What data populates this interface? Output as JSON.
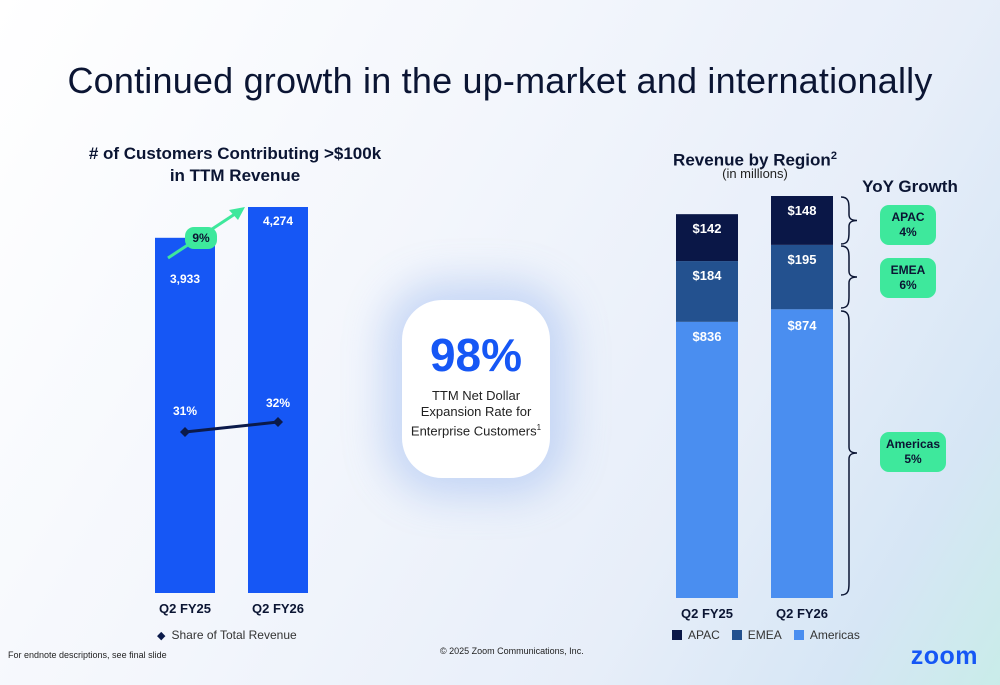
{
  "title": "Continued growth in the up-market and internationally",
  "chart_data": [
    {
      "type": "bar",
      "title_line1": "# of Customers Contributing >$100k",
      "title_line2": "in TTM Revenue",
      "categories": [
        "Q2 FY25",
        "Q2 FY26"
      ],
      "values": [
        3933,
        4274
      ],
      "value_labels": [
        "3,933",
        "4,274"
      ],
      "growth_label": "9%",
      "line_series": {
        "name": "Share of Total Revenue",
        "values": [
          31,
          32
        ],
        "labels": [
          "31%",
          "32%"
        ]
      },
      "colors": {
        "bar": "#1657f5",
        "line": "#0b1a4a",
        "growth": "#3ee89c"
      }
    },
    {
      "type": "bar",
      "stacked": true,
      "title": "Revenue by Region",
      "title_sup": "2",
      "subtitle": "(in millions)",
      "categories": [
        "Q2 FY25",
        "Q2 FY26"
      ],
      "series": [
        {
          "name": "Americas",
          "values": [
            836,
            874
          ],
          "labels": [
            "$836",
            "$874"
          ],
          "color": "#4a8ef0"
        },
        {
          "name": "EMEA",
          "values": [
            184,
            195
          ],
          "labels": [
            "$184",
            "$195"
          ],
          "color": "#23518f"
        },
        {
          "name": "APAC",
          "values": [
            142,
            148
          ],
          "labels": [
            "$142",
            "$148"
          ],
          "color": "#0a1747"
        }
      ],
      "yoy_title": "YoY Growth",
      "yoy": [
        {
          "region": "APAC",
          "value": "4%"
        },
        {
          "region": "EMEA",
          "value": "6%"
        },
        {
          "region": "Americas",
          "value": "5%"
        }
      ]
    }
  ],
  "kpi": {
    "value": "98%",
    "line1": "TTM Net Dollar",
    "line2": "Expansion Rate for",
    "line3": "Enterprise Customers",
    "sup": "1"
  },
  "footnote": "For endnote descriptions, see final slide",
  "copyright": "© 2025 Zoom Communications, Inc.",
  "logo": "zoom"
}
